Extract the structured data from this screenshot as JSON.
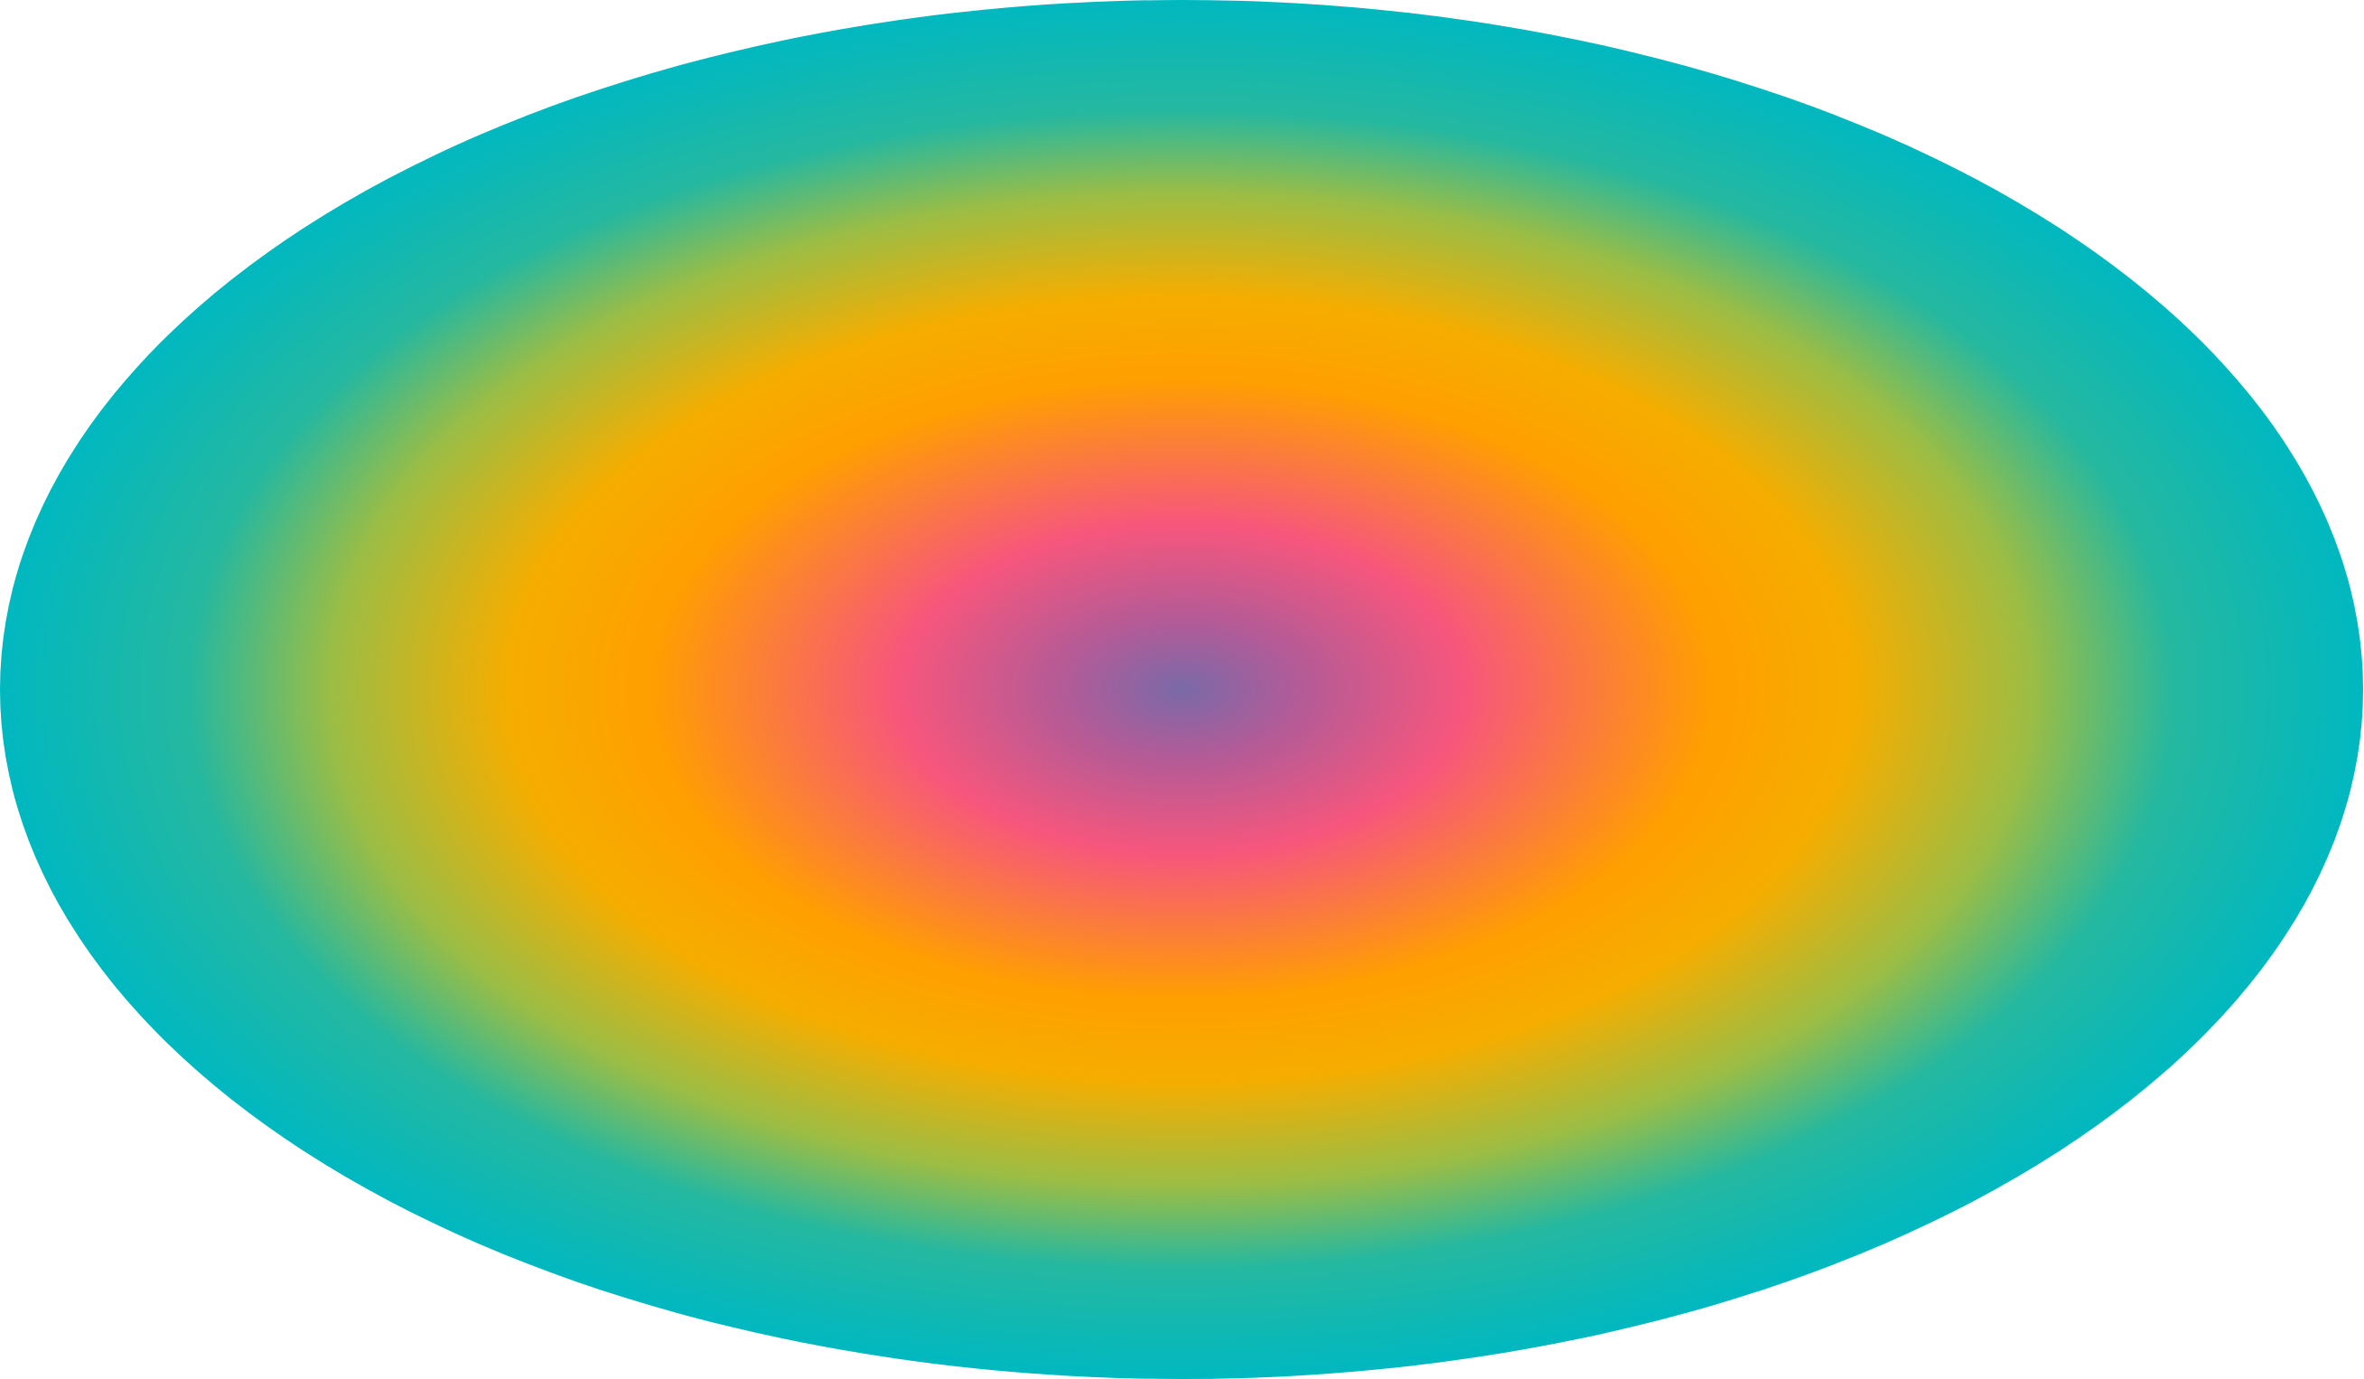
{
  "shape": {
    "kind": "ellipse",
    "fill": "radial-gradient",
    "colors": {
      "center": "#7a6aa8",
      "inner": "#f7567c",
      "middle": "#ffa000",
      "transition": "#b2b83a",
      "outer": "#00b8c0"
    },
    "icon": "radial-gradient-ellipse-icon"
  }
}
